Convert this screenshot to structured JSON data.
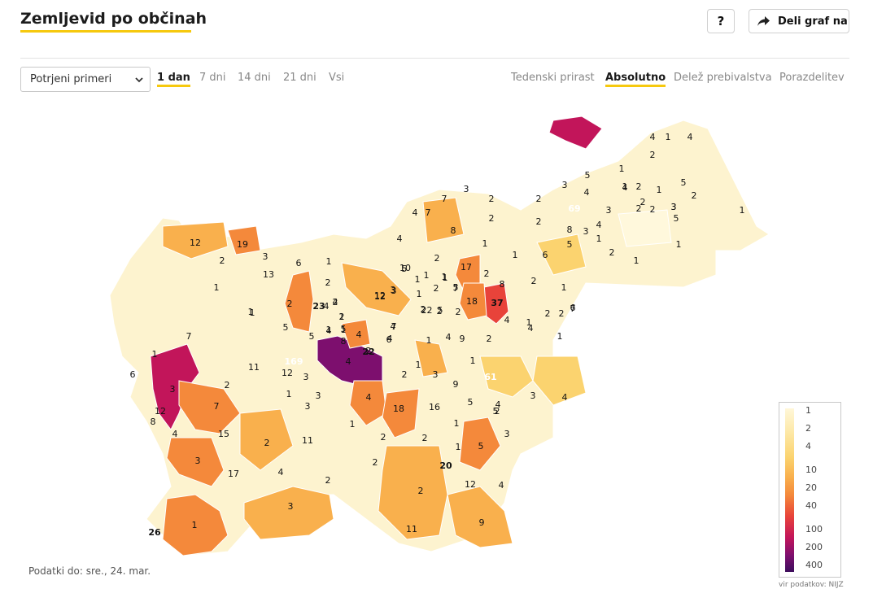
{
  "header": {
    "title": "Zemljevid po občinah",
    "help_label": "?",
    "share_label": "Deli graf na"
  },
  "controls": {
    "metric_selected": "Potrjeni primeri",
    "time_tabs": [
      {
        "label": "1 dan",
        "active": true
      },
      {
        "label": "7 dni",
        "active": false
      },
      {
        "label": "14 dni",
        "active": false
      },
      {
        "label": "21 dni",
        "active": false
      },
      {
        "label": "Vsi",
        "active": false
      }
    ],
    "mode_tabs": [
      {
        "label": "Tedenski prirast",
        "active": false
      },
      {
        "label": "Absolutno",
        "active": true
      },
      {
        "label": "Delež prebivalstva",
        "active": false
      },
      {
        "label": "Porazdelitev",
        "active": false
      }
    ]
  },
  "legend": {
    "ticks": [
      "1",
      "2",
      "4",
      "10",
      "20",
      "40",
      "100",
      "200",
      "400"
    ]
  },
  "map": {
    "labels": [
      "4",
      "1",
      "4",
      "2",
      "1",
      "5",
      "4",
      "2",
      "1",
      "2",
      "2",
      "1",
      "3",
      "5",
      "2",
      "69",
      "3",
      "4",
      "7",
      "3",
      "2",
      "2",
      "1",
      "3",
      "2",
      "4",
      "7",
      "8",
      "2",
      "5",
      "3",
      "1",
      "2",
      "1",
      "1",
      "5",
      "4",
      "8",
      "3",
      "4",
      "2",
      "1",
      "12",
      "19",
      "1",
      "6",
      "2",
      "1",
      "1",
      "1",
      "2",
      "2",
      "2",
      "2",
      "2",
      "3",
      "13",
      "6",
      "1",
      "4",
      "5",
      "2",
      "5",
      "4",
      "1",
      "4",
      "12",
      "3",
      "2",
      "2",
      "37",
      "18",
      "17",
      "8",
      "1",
      "1",
      "1",
      "6",
      "4",
      "2",
      "1",
      "2",
      "1",
      "12",
      "3",
      "1",
      "1",
      "7",
      "5",
      "6",
      "2",
      "23",
      "5",
      "4",
      "2",
      "4",
      "2",
      "1",
      "7",
      "5",
      "1",
      "1",
      "1",
      "1",
      "8",
      "5",
      "2",
      "4",
      "22",
      "4",
      "9",
      "2",
      "7",
      "4",
      "1",
      "7",
      "6",
      "2",
      "4",
      "169",
      "11",
      "3",
      "1",
      "12",
      "3",
      "3",
      "61",
      "2",
      "2",
      "2",
      "3",
      "9",
      "1",
      "12",
      "3",
      "4",
      "18",
      "16",
      "5",
      "4",
      "3",
      "4",
      "7",
      "15",
      "8",
      "4",
      "2",
      "1",
      "2",
      "2",
      "11",
      "3",
      "5",
      "20",
      "1",
      "1",
      "4",
      "2",
      "2",
      "3",
      "17",
      "5",
      "2",
      "2",
      "12",
      "4",
      "3",
      "9",
      "11",
      "1",
      "26",
      "10"
    ]
  },
  "footnote": "Podatki do: sre., 24. mar.",
  "source": "vir podatkov: NIJZ",
  "colors": {
    "accent": "#f6c90e",
    "scale": [
      "#fff8dc",
      "#fde9a9",
      "#fbd36f",
      "#f9b04d",
      "#f4893b",
      "#e8433a",
      "#c2155a",
      "#7d0f6e",
      "#3c0d5c"
    ]
  }
}
